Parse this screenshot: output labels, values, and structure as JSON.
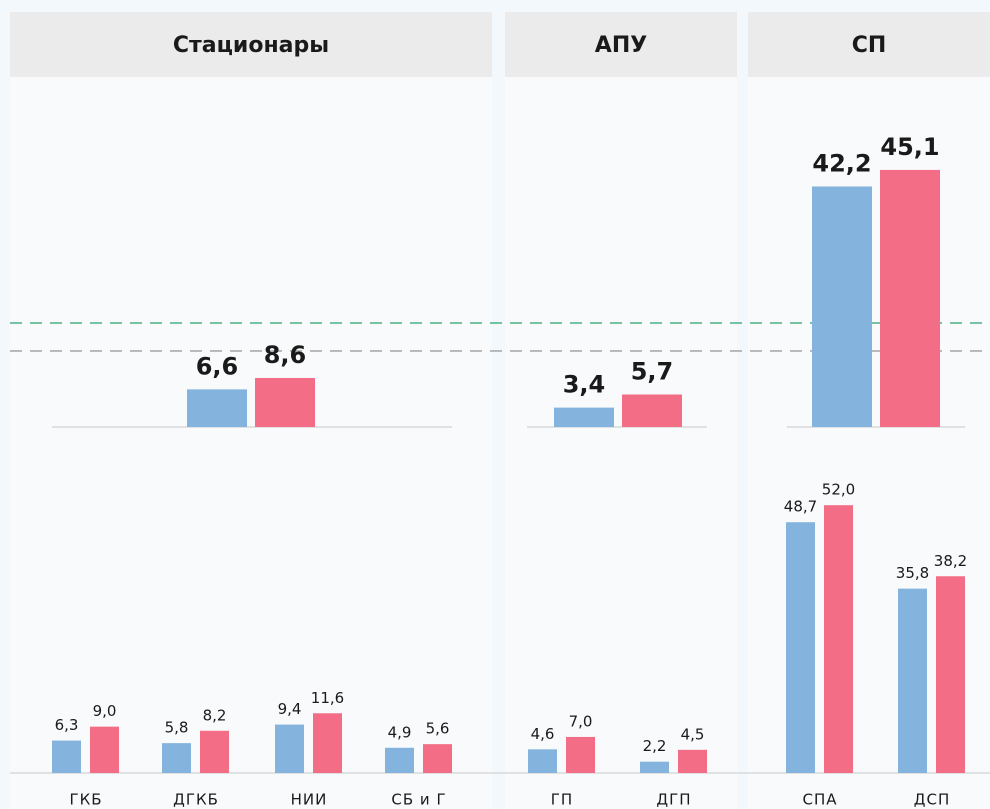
{
  "chart_data": [
    {
      "type": "bar",
      "title": "Стационары",
      "summary_values": [
        6.6,
        8.6
      ],
      "summary_value_labels": [
        "6,6",
        "8,6"
      ],
      "categories": [
        "ГКБ",
        "ДГКБ",
        "НИИ",
        "СБ и Г"
      ],
      "series": [
        {
          "color": "#84b4dd",
          "values": [
            6.3,
            5.8,
            9.4,
            4.9
          ],
          "value_labels": [
            "6,3",
            "5,8",
            "9,4",
            "4,9"
          ]
        },
        {
          "color": "#f26d85",
          "values": [
            9.0,
            8.2,
            11.6,
            5.6
          ],
          "value_labels": [
            "9,0",
            "8,2",
            "11,6",
            "5,6"
          ]
        }
      ]
    },
    {
      "type": "bar",
      "title": "АПУ",
      "summary_values": [
        3.4,
        5.7
      ],
      "summary_value_labels": [
        "3,4",
        "5,7"
      ],
      "categories": [
        "ГП",
        "ДГП"
      ],
      "series": [
        {
          "color": "#84b4dd",
          "values": [
            4.6,
            2.2
          ],
          "value_labels": [
            "4,6",
            "2,2"
          ]
        },
        {
          "color": "#f26d85",
          "values": [
            7.0,
            4.5
          ],
          "value_labels": [
            "7,0",
            "4,5"
          ]
        }
      ]
    },
    {
      "type": "bar",
      "title": "СП",
      "summary_values": [
        42.2,
        45.1
      ],
      "summary_value_labels": [
        "42,2",
        "45,1"
      ],
      "categories": [
        "СПА",
        "ДСП"
      ],
      "series": [
        {
          "color": "#84b4dd",
          "values": [
            48.7,
            35.8
          ],
          "value_labels": [
            "48,7",
            "35,8"
          ]
        },
        {
          "color": "#f26d85",
          "values": [
            52.0,
            38.2
          ],
          "value_labels": [
            "52,0",
            "38,2"
          ]
        }
      ]
    }
  ]
}
